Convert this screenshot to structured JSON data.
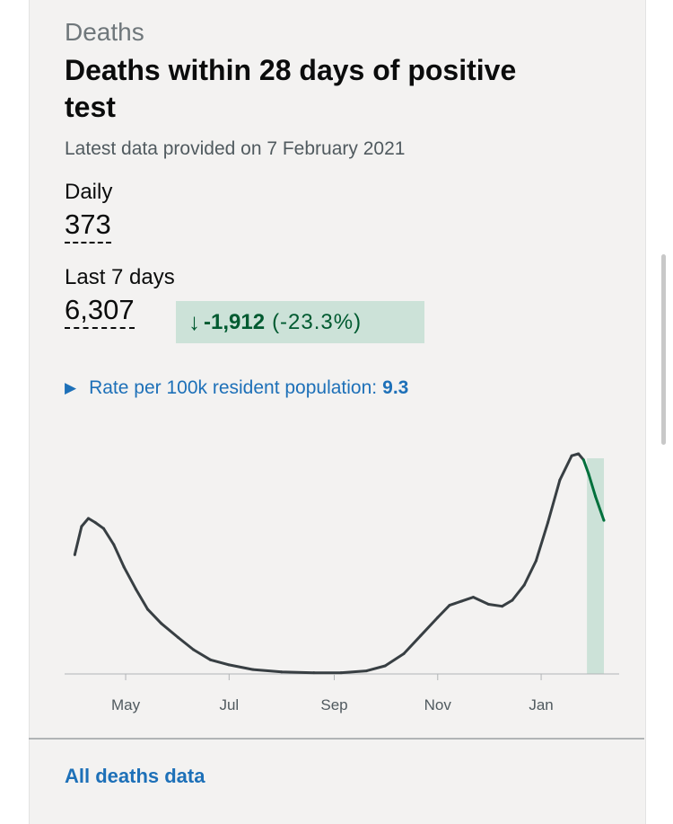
{
  "header": {
    "caption": "Deaths",
    "title": "Deaths within 28 days of positive test",
    "latest": "Latest data provided on 7 February 2021"
  },
  "metrics": {
    "daily_label": "Daily",
    "daily_value": "373",
    "week_label": "Last 7 days",
    "week_value": "6,307",
    "change_arrow": "↓",
    "change_value": "-1,912",
    "change_pct": "(-23.3%)"
  },
  "rate": {
    "label": "Rate per 100k resident population:",
    "value": "9.3"
  },
  "footer": {
    "link": "All deaths data"
  },
  "colors": {
    "line": "#383f43",
    "recent": "#00703c",
    "recent_fill": "#cce2d8",
    "axis": "#b1b4b6"
  },
  "chart_data": {
    "type": "line",
    "title": "",
    "xlabel": "",
    "ylabel": "",
    "grid": false,
    "x_ticks": [
      "May",
      "Jul",
      "Sep",
      "Nov",
      "Jan"
    ],
    "series": [
      {
        "values": [
          {
            "x": "2020-04-01",
            "y": 590
          },
          {
            "x": "2020-04-05",
            "y": 730
          },
          {
            "x": "2020-04-09",
            "y": 770
          },
          {
            "x": "2020-04-13",
            "y": 750
          },
          {
            "x": "2020-04-18",
            "y": 720
          },
          {
            "x": "2020-04-24",
            "y": 640
          },
          {
            "x": "2020-04-30",
            "y": 530
          },
          {
            "x": "2020-05-07",
            "y": 420
          },
          {
            "x": "2020-05-14",
            "y": 320
          },
          {
            "x": "2020-05-22",
            "y": 250
          },
          {
            "x": "2020-06-01",
            "y": 180
          },
          {
            "x": "2020-06-10",
            "y": 120
          },
          {
            "x": "2020-06-20",
            "y": 70
          },
          {
            "x": "2020-07-01",
            "y": 45
          },
          {
            "x": "2020-07-15",
            "y": 22
          },
          {
            "x": "2020-08-01",
            "y": 10
          },
          {
            "x": "2020-08-20",
            "y": 6
          },
          {
            "x": "2020-09-05",
            "y": 6
          },
          {
            "x": "2020-09-20",
            "y": 15
          },
          {
            "x": "2020-10-01",
            "y": 40
          },
          {
            "x": "2020-10-12",
            "y": 100
          },
          {
            "x": "2020-10-22",
            "y": 190
          },
          {
            "x": "2020-11-01",
            "y": 280
          },
          {
            "x": "2020-11-08",
            "y": 340
          },
          {
            "x": "2020-11-15",
            "y": 360
          },
          {
            "x": "2020-11-22",
            "y": 380
          },
          {
            "x": "2020-12-01",
            "y": 345
          },
          {
            "x": "2020-12-09",
            "y": 335
          },
          {
            "x": "2020-12-15",
            "y": 365
          },
          {
            "x": "2020-12-22",
            "y": 440
          },
          {
            "x": "2020-12-29",
            "y": 560
          },
          {
            "x": "2021-01-05",
            "y": 750
          },
          {
            "x": "2021-01-12",
            "y": 960
          },
          {
            "x": "2021-01-19",
            "y": 1080
          },
          {
            "x": "2021-01-23",
            "y": 1090
          },
          {
            "x": "2021-01-26",
            "y": 1060
          },
          {
            "x": "2021-01-29",
            "y": 990
          },
          {
            "x": "2021-02-02",
            "y": 880
          },
          {
            "x": "2021-02-07",
            "y": 760
          }
        ]
      }
    ],
    "highlight_range": [
      "2021-01-28",
      "2021-02-07"
    ]
  }
}
